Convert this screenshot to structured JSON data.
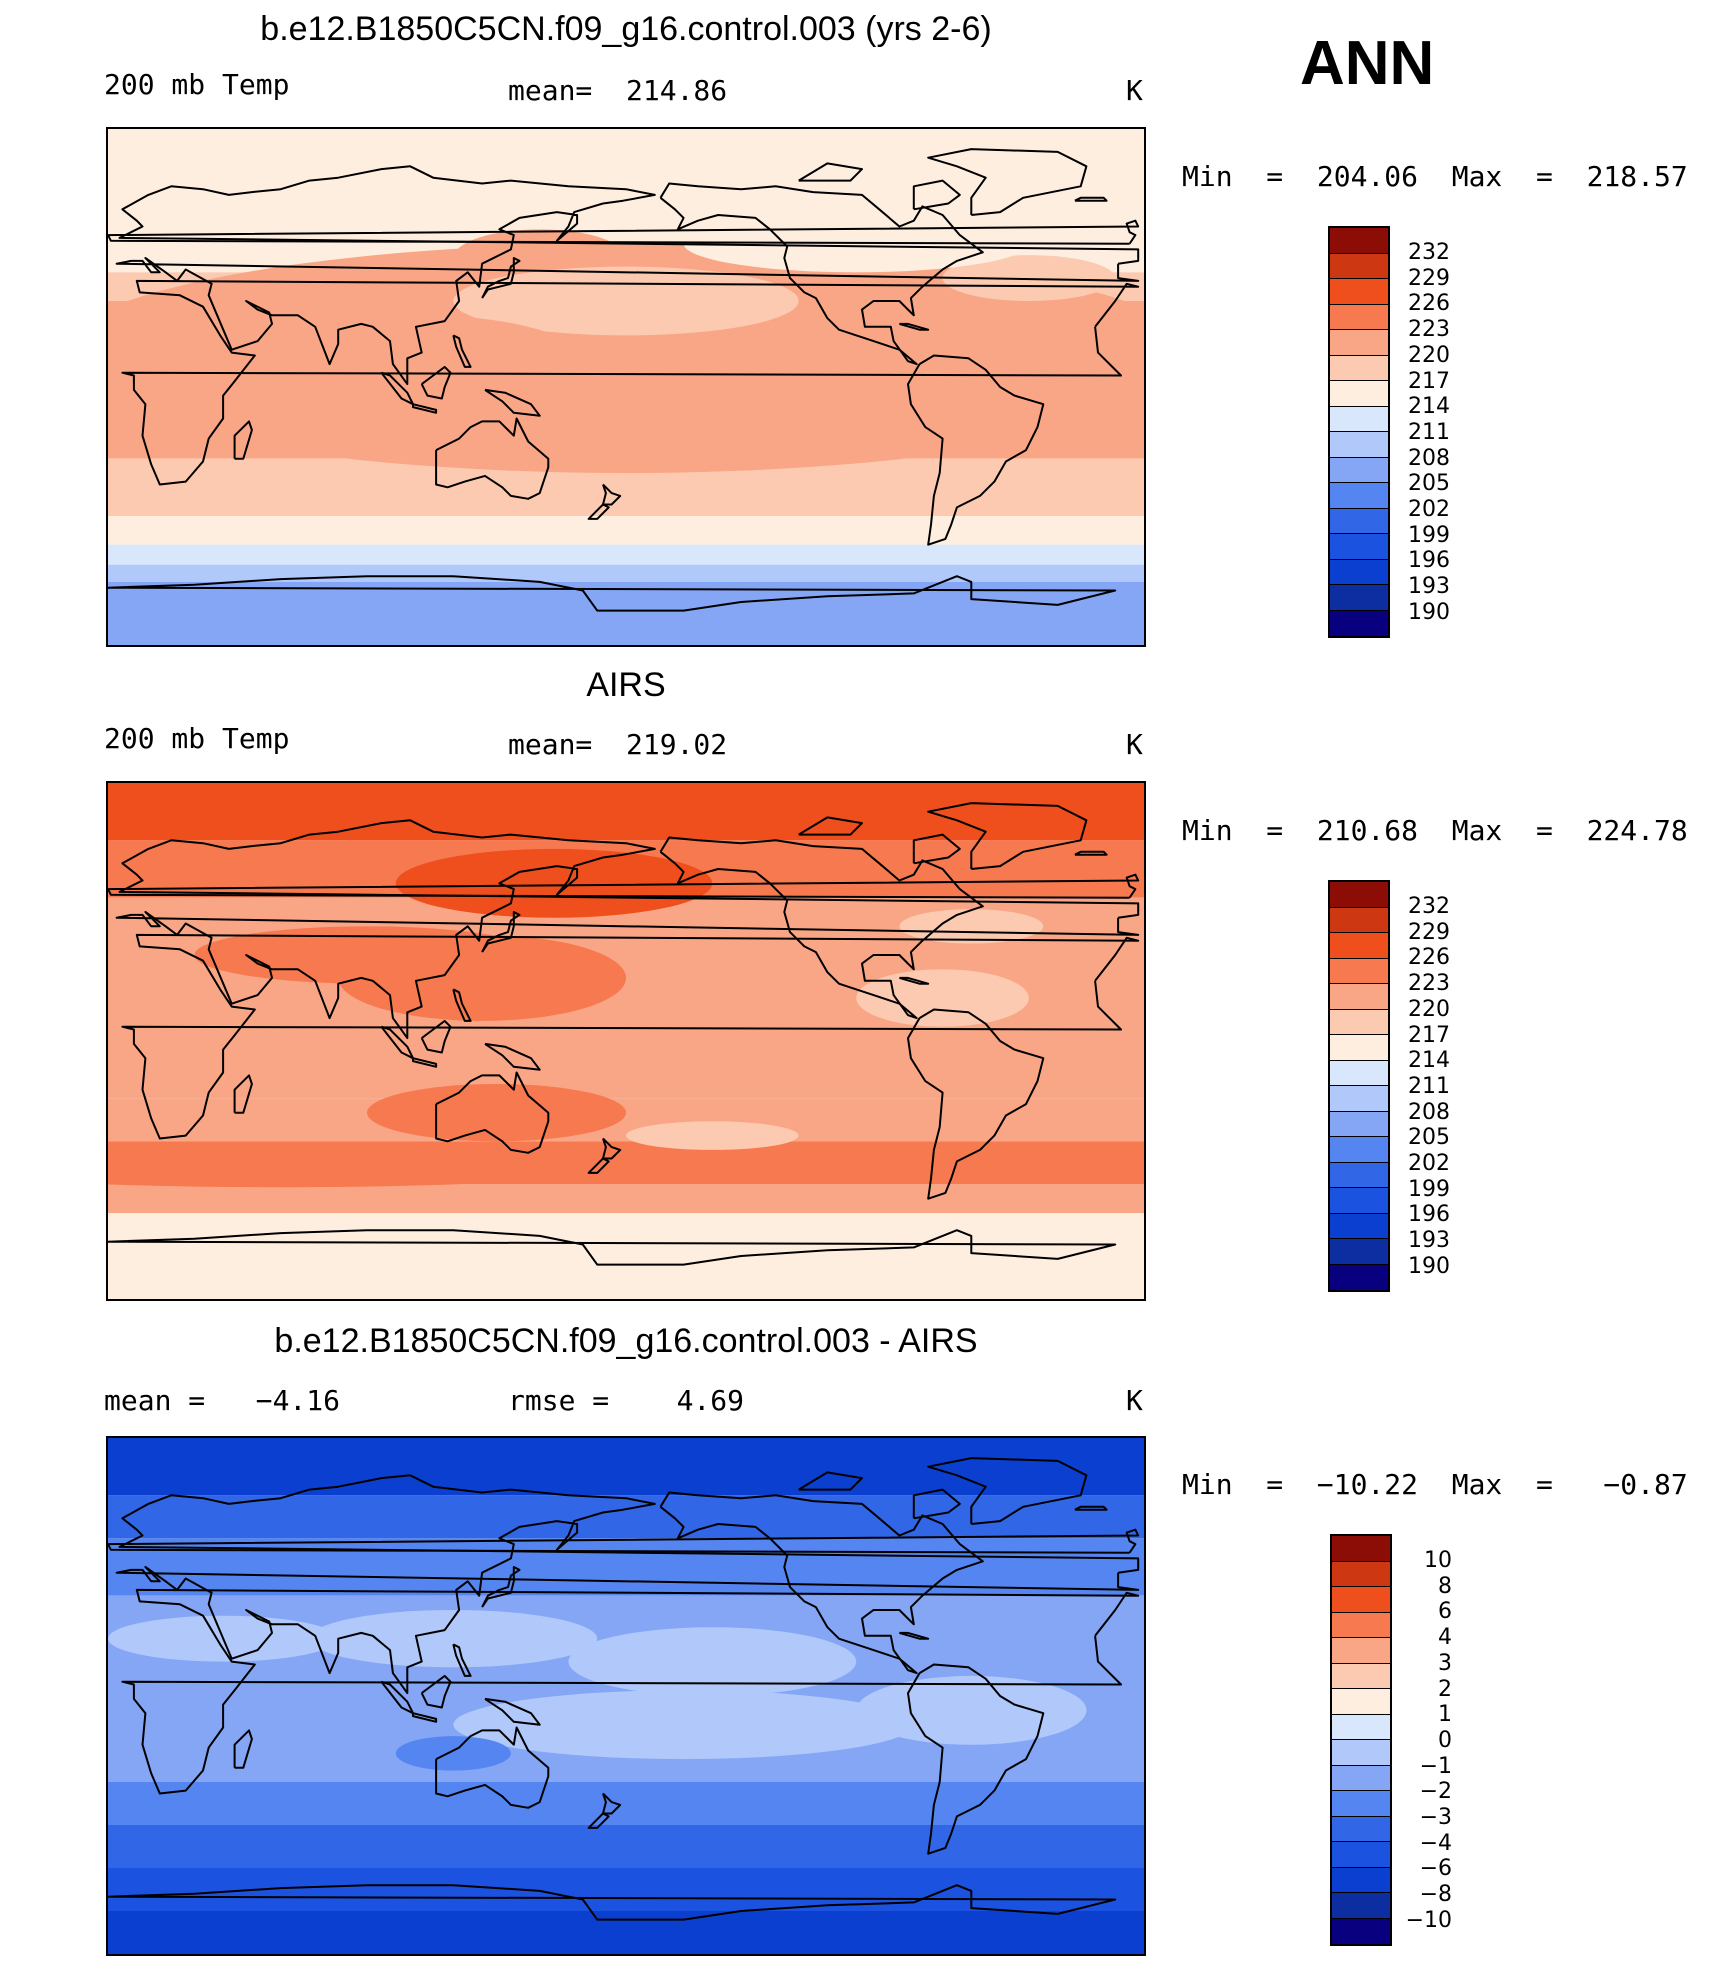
{
  "season": "ANN",
  "color_scale": [
    "#08007f",
    "#0c2ea0",
    "#0b3fd0",
    "#1b52e0",
    "#3166e6",
    "#5585f0",
    "#84a6f5",
    "#b1c8fa",
    "#d8e7fc",
    "#feeee0",
    "#fccab0",
    "#f9a686",
    "#f7794f",
    "#ef4e1d",
    "#cd3712",
    "#8c0c06"
  ],
  "panels": [
    {
      "title": "b.e12.B1850C5CN.f09_g16.control.003 (yrs 2-6)",
      "left_label": "200 mb Temp",
      "mean_label": "mean=  214.86",
      "units": "K",
      "stats": "Min  =  204.06  Max  =  218.57",
      "colorbar_labels": [
        "232",
        "229",
        "226",
        "223",
        "220",
        "217",
        "214",
        "211",
        "208",
        "205",
        "202",
        "199",
        "196",
        "193",
        "190"
      ],
      "field": "model"
    },
    {
      "title": "AIRS",
      "left_label": "200 mb Temp",
      "mean_label": "mean=  219.02",
      "units": "K",
      "stats": "Min  =  210.68  Max  =  224.78",
      "colorbar_labels": [
        "232",
        "229",
        "226",
        "223",
        "220",
        "217",
        "214",
        "211",
        "208",
        "205",
        "202",
        "199",
        "196",
        "193",
        "190"
      ],
      "field": "obs"
    },
    {
      "title": "b.e12.B1850C5CN.f09_g16.control.003 - AIRS",
      "left_label": "mean =   −4.16",
      "mean_label": "rmse =    4.69",
      "units": "K",
      "stats": "Min  =  −10.22  Max  =   −0.87",
      "colorbar_labels": [
        "10",
        "8",
        "6",
        "4",
        "3",
        "2",
        "1",
        "0",
        "−1",
        "−2",
        "−3",
        "−4",
        "−6",
        "−8",
        "−10"
      ],
      "field": "diff"
    }
  ]
}
